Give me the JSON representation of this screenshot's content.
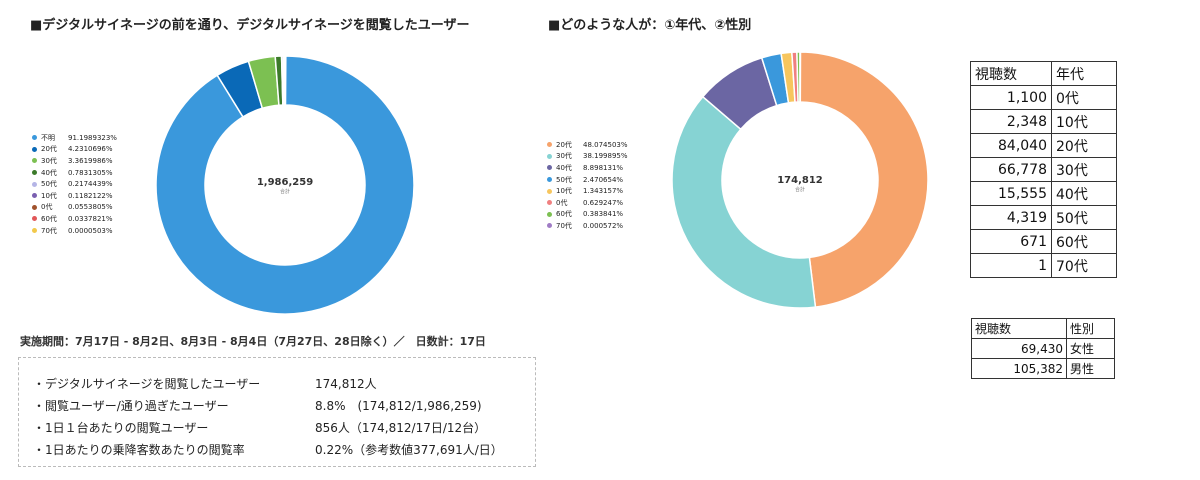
{
  "charts": {
    "left_title": "■デジタルサイネージの前を通り、デジタルサイネージを閲覧したユーザー",
    "right_title": "■どのような人が：①年代、②性別"
  },
  "chart_data": [
    {
      "type": "pie",
      "variant": "donut",
      "title": "■デジタルサイネージの前を通り、デジタルサイネージを閲覧したユーザー",
      "center_value": "1,986,259",
      "center_label": "合計",
      "legend_position": "left",
      "slices": [
        {
          "label": "不明",
          "value": 91.1989323,
          "pct": "91.1989323%",
          "color": "#3a98dc"
        },
        {
          "label": "20代",
          "value": 4.2310696,
          "pct": "4.2310696%",
          "color": "#0a69b7"
        },
        {
          "label": "30代",
          "value": 3.3619986,
          "pct": "3.3619986%",
          "color": "#7cc052"
        },
        {
          "label": "40代",
          "value": 0.7831305,
          "pct": "0.7831305%",
          "color": "#3c7a2a"
        },
        {
          "label": "50代",
          "value": 0.2174439,
          "pct": "0.2174439%",
          "color": "#b5b5e6"
        },
        {
          "label": "10代",
          "value": 0.1182122,
          "pct": "0.1182122%",
          "color": "#7a5fb0"
        },
        {
          "label": "0代",
          "value": 0.0553805,
          "pct": "0.0553805%",
          "color": "#a0522d"
        },
        {
          "label": "60代",
          "value": 0.0337821,
          "pct": "0.0337821%",
          "color": "#e15759"
        },
        {
          "label": "70代",
          "value": 5.03e-05,
          "pct": "0.0000503%",
          "color": "#f2c94c"
        }
      ]
    },
    {
      "type": "pie",
      "variant": "donut",
      "title": "■どのような人が：①年代、②性別",
      "center_value": "174,812",
      "center_label": "合計",
      "legend_position": "left",
      "slices": [
        {
          "label": "20代",
          "value": 48.074503,
          "pct": "48.074503%",
          "color": "#f6a36b"
        },
        {
          "label": "30代",
          "value": 38.199895,
          "pct": "38.199895%",
          "color": "#86d3d3"
        },
        {
          "label": "40代",
          "value": 8.898131,
          "pct": "8.898131%",
          "color": "#6b66a3"
        },
        {
          "label": "50代",
          "value": 2.470654,
          "pct": "2.470654%",
          "color": "#3a98dc"
        },
        {
          "label": "10代",
          "value": 1.343157,
          "pct": "1.343157%",
          "color": "#f7c65e"
        },
        {
          "label": "0代",
          "value": 0.629247,
          "pct": "0.629247%",
          "color": "#f08080"
        },
        {
          "label": "60代",
          "value": 0.383841,
          "pct": "0.383841%",
          "color": "#7cc052"
        },
        {
          "label": "70代",
          "value": 0.000572,
          "pct": "0.000572%",
          "color": "#a07cc5"
        }
      ]
    },
    {
      "type": "table",
      "columns": [
        "視聴数",
        "年代"
      ],
      "rows": [
        [
          "1,100",
          "0代"
        ],
        [
          "2,348",
          "10代"
        ],
        [
          "84,040",
          "20代"
        ],
        [
          "66,778",
          "30代"
        ],
        [
          "15,555",
          "40代"
        ],
        [
          "4,319",
          "50代"
        ],
        [
          "671",
          "60代"
        ],
        [
          "1",
          "70代"
        ]
      ]
    },
    {
      "type": "table",
      "columns": [
        "視聴数",
        "性別"
      ],
      "rows": [
        [
          "69,430",
          "女性"
        ],
        [
          "105,382",
          "男性"
        ]
      ]
    }
  ],
  "period": "実施期間：7月17日 - 8月2日、8月3日 - 8月4日（7月27日、28日除く）／　日数計：17日",
  "summary": [
    {
      "label": "・デジタルサイネージを閲覧したユーザー",
      "value": "174,812人"
    },
    {
      "label": "・閲覧ユーザー/通り過ぎたユーザー",
      "value": "8.8%　(174,812/1,986,259)"
    },
    {
      "label": "・1日１台あたりの閲覧ユーザー",
      "value": "856人（174,812/17日/12台）"
    },
    {
      "label": "・1日あたりの乗降客数あたりの閲覧率",
      "value": "0.22%（参考数値377,691人/日）"
    }
  ]
}
